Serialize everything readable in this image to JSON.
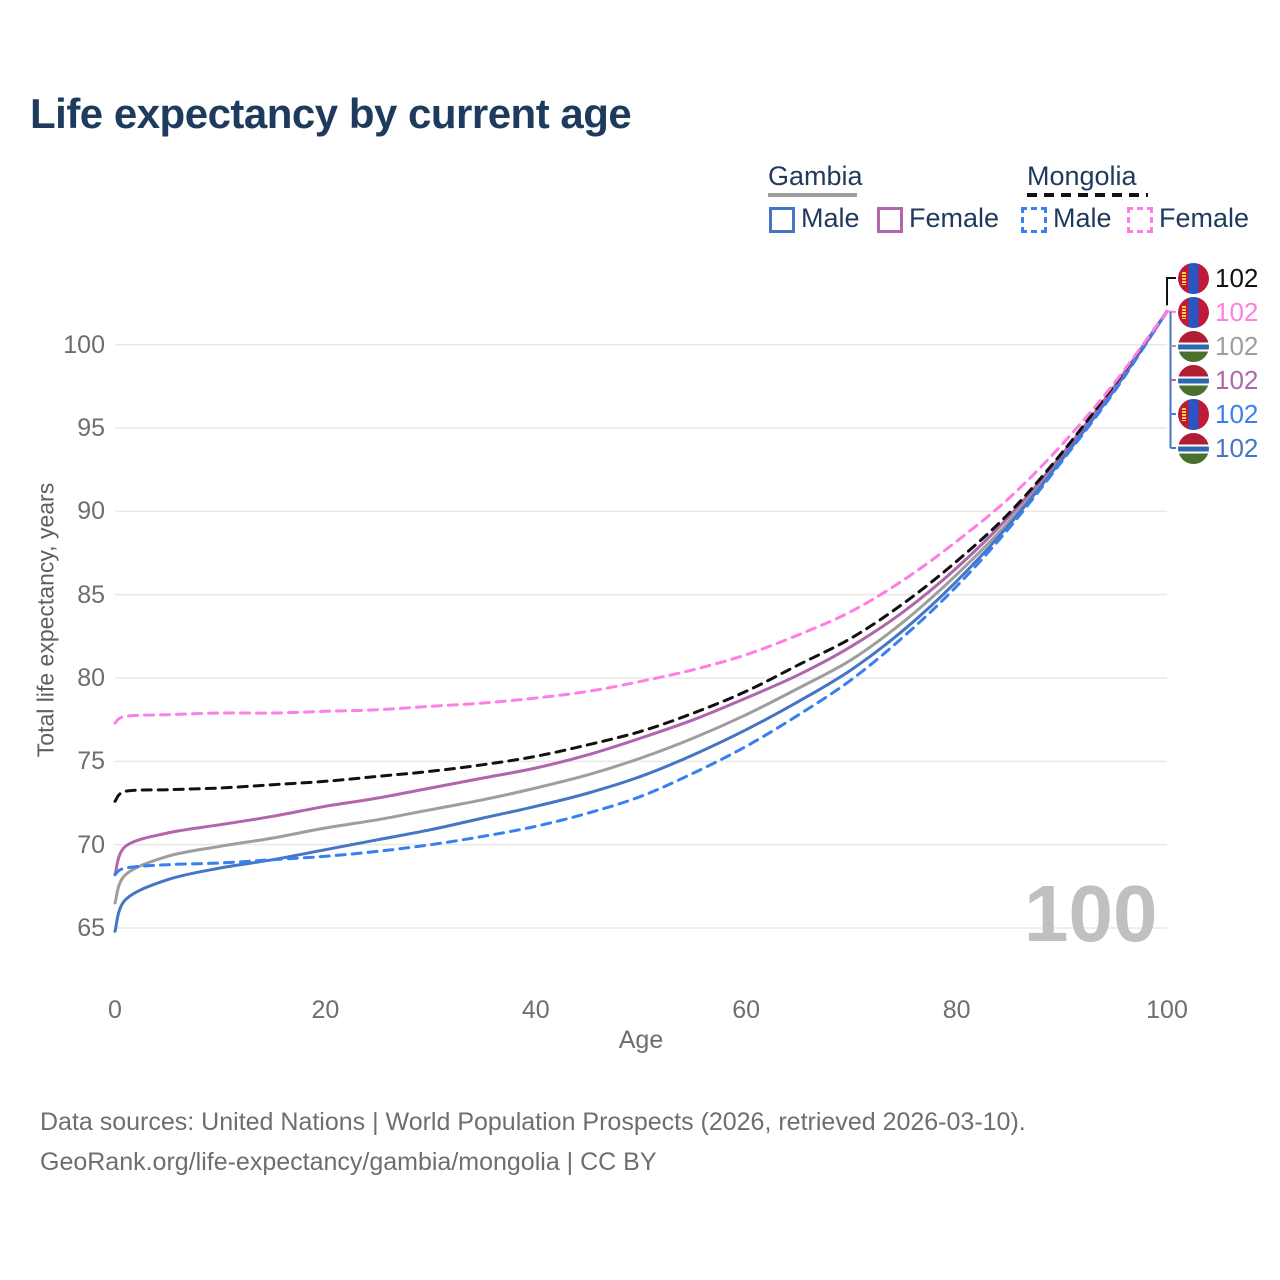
{
  "header": {
    "title": "Life expectancy by current age"
  },
  "legend": {
    "groups": [
      {
        "country": "Gambia",
        "line_style": "solid",
        "underline_color": "#9e9e9e",
        "items": [
          {
            "label": "Male",
            "swatch_color": "#4575c4",
            "swatch_style": "solid"
          },
          {
            "label": "Female",
            "swatch_color": "#b066ac",
            "swatch_style": "solid"
          }
        ]
      },
      {
        "country": "Mongolia",
        "line_style": "dashed",
        "underline_color": "#111111",
        "items": [
          {
            "label": "Male",
            "swatch_color": "#3a7ff0",
            "swatch_style": "dashed"
          },
          {
            "label": "Female",
            "swatch_color": "#ff7ee3",
            "swatch_style": "dashed"
          }
        ]
      }
    ]
  },
  "watermark": "100",
  "footer": {
    "line1": "Data sources: United Nations | World Population Prospects (2026, retrieved 2026-03-10).",
    "line2": "GeoRank.org/life-expectancy/gambia/mongolia | CC BY"
  },
  "chart_data": {
    "type": "line",
    "title": "Life expectancy by current age",
    "xlabel": "Age",
    "ylabel": "Total life expectancy, years",
    "xlim": [
      0,
      100
    ],
    "ylim": [
      61,
      103.5
    ],
    "xticks": [
      0,
      20,
      40,
      60,
      80,
      100
    ],
    "yticks": [
      65,
      70,
      75,
      80,
      85,
      90,
      95,
      100
    ],
    "grid": "horizontal",
    "legend_position": "top-right",
    "x": [
      0,
      1,
      5,
      10,
      15,
      20,
      25,
      30,
      35,
      40,
      45,
      50,
      55,
      60,
      65,
      70,
      75,
      80,
      85,
      90,
      95,
      100
    ],
    "series": [
      {
        "name": "Gambia (both sexes)",
        "country": "Gambia",
        "color": "#9e9e9e",
        "dash": "solid",
        "values": [
          66.5,
          68.2,
          69.3,
          69.9,
          70.4,
          71.0,
          71.5,
          72.1,
          72.7,
          73.4,
          74.2,
          75.2,
          76.4,
          77.8,
          79.4,
          81.1,
          83.4,
          86.2,
          89.4,
          93.2,
          97.4,
          102
        ]
      },
      {
        "name": "Gambia Male",
        "country": "Gambia",
        "color": "#4575c4",
        "dash": "solid",
        "values": [
          64.8,
          66.7,
          67.9,
          68.6,
          69.1,
          69.7,
          70.3,
          70.9,
          71.6,
          72.3,
          73.1,
          74.1,
          75.4,
          76.9,
          78.6,
          80.5,
          82.9,
          85.8,
          89.2,
          93.1,
          97.3,
          102
        ]
      },
      {
        "name": "Gambia Female",
        "country": "Gambia",
        "color": "#b066ac",
        "dash": "solid",
        "values": [
          68.2,
          69.9,
          70.7,
          71.2,
          71.7,
          72.3,
          72.8,
          73.4,
          74.0,
          74.6,
          75.4,
          76.4,
          77.5,
          78.8,
          80.2,
          81.9,
          84.0,
          86.6,
          89.7,
          93.4,
          97.5,
          102
        ]
      },
      {
        "name": "Mongolia Male",
        "country": "Mongolia",
        "color": "#3a7ff0",
        "dash": "dashed",
        "values": [
          68.2,
          68.6,
          68.8,
          68.9,
          69.1,
          69.3,
          69.6,
          70.0,
          70.5,
          71.1,
          71.9,
          72.9,
          74.3,
          75.9,
          77.8,
          79.9,
          82.5,
          85.5,
          89.0,
          93.0,
          97.2,
          102
        ]
      },
      {
        "name": "Mongolia (both sexes)",
        "country": "Mongolia",
        "color": "#111111",
        "dash": "dashed",
        "values": [
          72.6,
          73.2,
          73.3,
          73.4,
          73.6,
          73.8,
          74.1,
          74.4,
          74.8,
          75.3,
          76.0,
          76.8,
          77.9,
          79.2,
          80.8,
          82.4,
          84.5,
          87.0,
          89.9,
          93.5,
          97.6,
          102
        ]
      },
      {
        "name": "Mongolia Female",
        "country": "Mongolia",
        "color": "#ff7ee3",
        "dash": "dashed",
        "values": [
          77.3,
          77.7,
          77.8,
          77.9,
          77.9,
          78.0,
          78.1,
          78.3,
          78.5,
          78.8,
          79.2,
          79.8,
          80.5,
          81.4,
          82.6,
          84.0,
          85.9,
          88.2,
          90.8,
          94.0,
          97.7,
          102
        ]
      }
    ],
    "end_labels": [
      {
        "series": "Mongolia (both sexes)",
        "flag": "mongolia",
        "value": "102",
        "color": "#111111"
      },
      {
        "series": "Mongolia Female",
        "flag": "mongolia",
        "value": "102",
        "color": "#ff7ee3"
      },
      {
        "series": "Gambia (both sexes)",
        "flag": "gambia",
        "value": "102",
        "color": "#9e9e9e"
      },
      {
        "series": "Gambia Female",
        "flag": "gambia",
        "value": "102",
        "color": "#b066ac"
      },
      {
        "series": "Mongolia Male",
        "flag": "mongolia",
        "value": "102",
        "color": "#3a7ff0"
      },
      {
        "series": "Gambia Male",
        "flag": "gambia",
        "value": "102",
        "color": "#4575c4"
      }
    ]
  }
}
